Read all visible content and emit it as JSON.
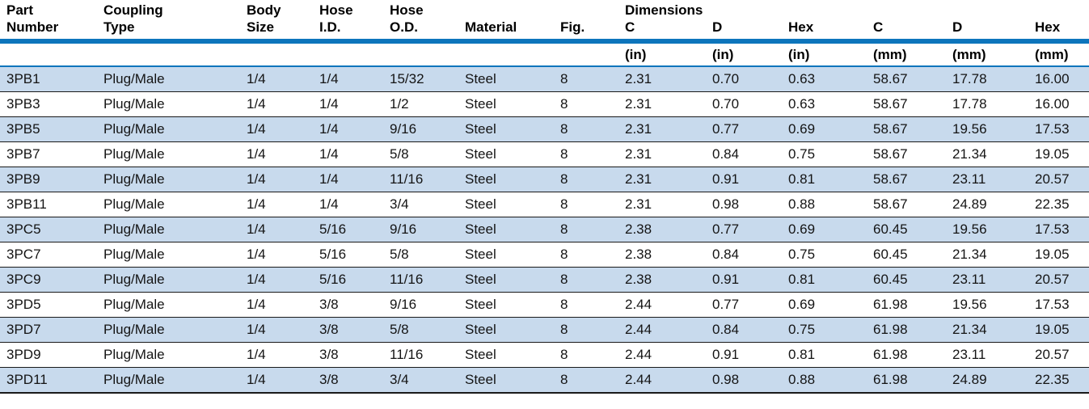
{
  "table": {
    "dimensions_group_label": "Dimensions",
    "columns": [
      {
        "id": "part_number",
        "line1": "Part",
        "line2": "Number",
        "unit": ""
      },
      {
        "id": "coupling_type",
        "line1": "Coupling",
        "line2": "Type",
        "unit": ""
      },
      {
        "id": "body_size",
        "line1": "Body",
        "line2": "Size",
        "unit": ""
      },
      {
        "id": "hose_id",
        "line1": "Hose",
        "line2": "I.D.",
        "unit": ""
      },
      {
        "id": "hose_od",
        "line1": "Hose",
        "line2": "O.D.",
        "unit": ""
      },
      {
        "id": "material",
        "line1": "",
        "line2": "Material",
        "unit": ""
      },
      {
        "id": "fig",
        "line1": "",
        "line2": "Fig.",
        "unit": ""
      },
      {
        "id": "c_in",
        "line1": "Dimensions",
        "line2": "C",
        "unit": "(in)"
      },
      {
        "id": "d_in",
        "line1": "",
        "line2": "D",
        "unit": "(in)"
      },
      {
        "id": "hex_in",
        "line1": "",
        "line2": "Hex",
        "unit": "(in)"
      },
      {
        "id": "c_mm",
        "line1": "",
        "line2": "C",
        "unit": "(mm)"
      },
      {
        "id": "d_mm",
        "line1": "",
        "line2": "D",
        "unit": "(mm)"
      },
      {
        "id": "hex_mm",
        "line1": "",
        "line2": "Hex",
        "unit": "(mm)"
      }
    ],
    "rows": [
      [
        "3PB1",
        "Plug/Male",
        "1/4",
        "1/4",
        "15/32",
        "Steel",
        "8",
        "2.31",
        "0.70",
        "0.63",
        "58.67",
        "17.78",
        "16.00"
      ],
      [
        "3PB3",
        "Plug/Male",
        "1/4",
        "1/4",
        "1/2",
        "Steel",
        "8",
        "2.31",
        "0.70",
        "0.63",
        "58.67",
        "17.78",
        "16.00"
      ],
      [
        "3PB5",
        "Plug/Male",
        "1/4",
        "1/4",
        "9/16",
        "Steel",
        "8",
        "2.31",
        "0.77",
        "0.69",
        "58.67",
        "19.56",
        "17.53"
      ],
      [
        "3PB7",
        "Plug/Male",
        "1/4",
        "1/4",
        "5/8",
        "Steel",
        "8",
        "2.31",
        "0.84",
        "0.75",
        "58.67",
        "21.34",
        "19.05"
      ],
      [
        "3PB9",
        "Plug/Male",
        "1/4",
        "1/4",
        "11/16",
        "Steel",
        "8",
        "2.31",
        "0.91",
        "0.81",
        "58.67",
        "23.11",
        "20.57"
      ],
      [
        "3PB11",
        "Plug/Male",
        "1/4",
        "1/4",
        "3/4",
        "Steel",
        "8",
        "2.31",
        "0.98",
        "0.88",
        "58.67",
        "24.89",
        "22.35"
      ],
      [
        "3PC5",
        "Plug/Male",
        "1/4",
        "5/16",
        "9/16",
        "Steel",
        "8",
        "2.38",
        "0.77",
        "0.69",
        "60.45",
        "19.56",
        "17.53"
      ],
      [
        "3PC7",
        "Plug/Male",
        "1/4",
        "5/16",
        "5/8",
        "Steel",
        "8",
        "2.38",
        "0.84",
        "0.75",
        "60.45",
        "21.34",
        "19.05"
      ],
      [
        "3PC9",
        "Plug/Male",
        "1/4",
        "5/16",
        "11/16",
        "Steel",
        "8",
        "2.38",
        "0.91",
        "0.81",
        "60.45",
        "23.11",
        "20.57"
      ],
      [
        "3PD5",
        "Plug/Male",
        "1/4",
        "3/8",
        "9/16",
        "Steel",
        "8",
        "2.44",
        "0.77",
        "0.69",
        "61.98",
        "19.56",
        "17.53"
      ],
      [
        "3PD7",
        "Plug/Male",
        "1/4",
        "3/8",
        "5/8",
        "Steel",
        "8",
        "2.44",
        "0.84",
        "0.75",
        "61.98",
        "21.34",
        "19.05"
      ],
      [
        "3PD9",
        "Plug/Male",
        "1/4",
        "3/8",
        "11/16",
        "Steel",
        "8",
        "2.44",
        "0.91",
        "0.81",
        "61.98",
        "23.11",
        "20.57"
      ],
      [
        "3PD11",
        "Plug/Male",
        "1/4",
        "3/8",
        "3/4",
        "Steel",
        "8",
        "2.44",
        "0.98",
        "0.88",
        "61.98",
        "24.89",
        "22.35"
      ]
    ]
  },
  "colors": {
    "accent_blue": "#0d75bc",
    "row_alt_blue": "#c8daed",
    "separator_black": "#1a1a1a",
    "header_text": "#000000"
  }
}
